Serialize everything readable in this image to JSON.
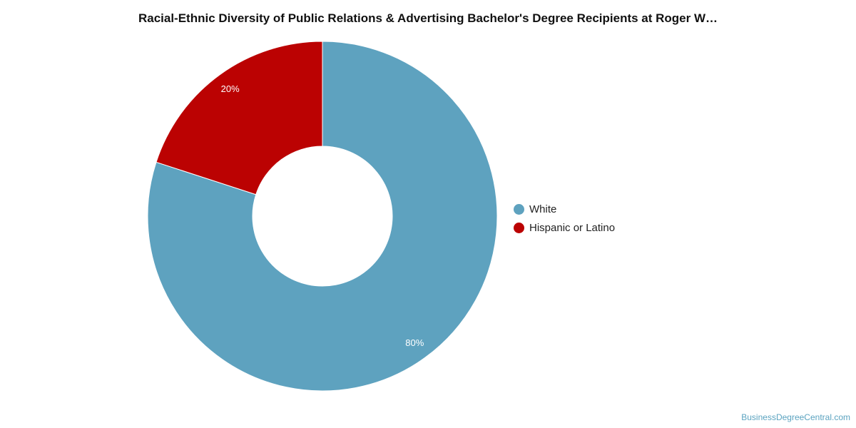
{
  "header": {
    "title": "Racial-Ethnic Diversity of Public Relations & Advertising Bachelor's Degree Recipients at Roger W…"
  },
  "chart_data": {
    "type": "pie",
    "variant": "donut",
    "title": "Racial-Ethnic Diversity of Public Relations & Advertising Bachelor's Degree Recipients at Roger W…",
    "categories": [
      "White",
      "Hispanic or Latino"
    ],
    "values": [
      80,
      20
    ],
    "labels": [
      "80%",
      "20%"
    ],
    "colors": [
      "#5ea2bf",
      "#bb0202"
    ],
    "legend_position": "right"
  },
  "legend": {
    "items": [
      {
        "label": "White",
        "color": "#5ea2bf"
      },
      {
        "label": "Hispanic or Latino",
        "color": "#bb0202"
      }
    ]
  },
  "footer": {
    "credit": "BusinessDegreeCentral.com"
  }
}
